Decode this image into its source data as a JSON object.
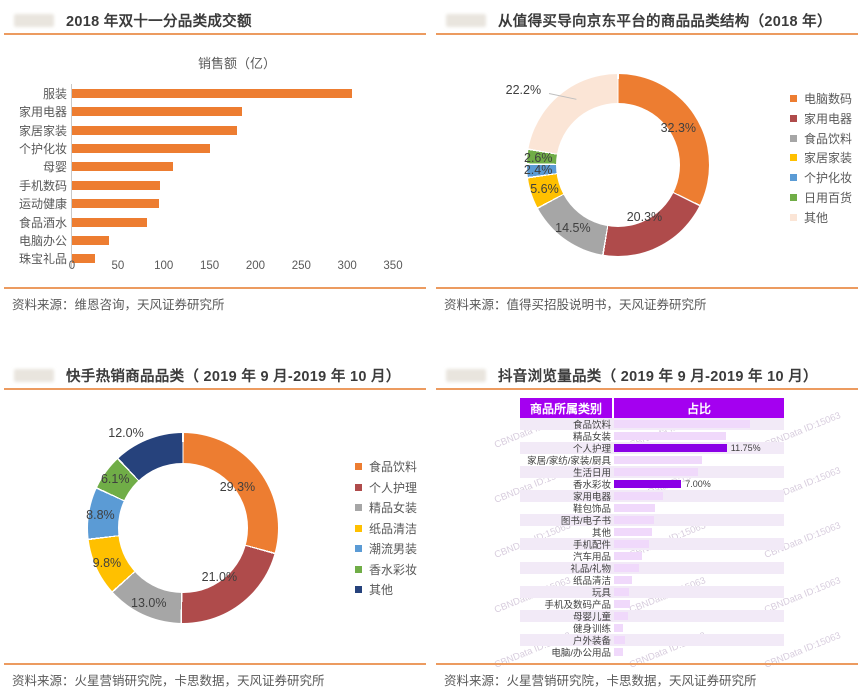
{
  "chart_data": [
    {
      "id": "double11-gmv-by-category",
      "type": "bar",
      "orientation": "horizontal",
      "title": "2018 年双十一分品类成交额",
      "subtitle": "销售额（亿）",
      "categories": [
        "服装",
        "家用电器",
        "家居家装",
        "个护化妆",
        "母婴",
        "手机数码",
        "运动健康",
        "食品酒水",
        "电脑办公",
        "珠宝礼品"
      ],
      "values": [
        305,
        185,
        180,
        150,
        110,
        96,
        95,
        82,
        40,
        25
      ],
      "xlim": [
        0,
        350
      ],
      "xticks": [
        0,
        50,
        100,
        150,
        200,
        250,
        300,
        350
      ],
      "bar_color": "#ED7D31",
      "grid": false,
      "source": "资料来源：维恩咨询，天风证券研究所"
    },
    {
      "id": "zhidemai-to-jd-category-structure",
      "type": "pie",
      "donut": true,
      "title": "从值得买导向京东平台的商品品类结构（2018 年）",
      "legend_position": "right",
      "slices": [
        {
          "label": "电脑数码",
          "value": 32.3,
          "color": "#ED7D31",
          "label_r": 0.78
        },
        {
          "label": "家用电器",
          "value": 20.3,
          "color": "#AF4B4B",
          "label_r": 0.64
        },
        {
          "label": "食品饮料",
          "value": 14.5,
          "color": "#A6A6A6",
          "label_r": 0.85
        },
        {
          "label": "家居家装",
          "value": 5.6,
          "color": "#FFC000",
          "label_r": 0.85
        },
        {
          "label": "个护化妆",
          "value": 2.4,
          "color": "#5B9BD5",
          "label_r": 0.88
        },
        {
          "label": "日用百货",
          "value": 2.6,
          "color": "#70AD47",
          "label_r": 0.88
        },
        {
          "label": "其他",
          "value": 22.2,
          "color": "#FBE5D6",
          "label_pos": [
            -2,
            9
          ],
          "leader": true
        }
      ],
      "source": "资料来源：值得买招股说明书，天风证券研究所"
    },
    {
      "id": "kuaishou-hot-categories",
      "type": "pie",
      "donut": true,
      "title": "快手热销商品品类（ 2019 年 9 月-2019 年 10 月）",
      "legend_position": "right",
      "slices": [
        {
          "label": "食品饮料",
          "value": 29.3,
          "color": "#ED7D31",
          "label_r": 0.72
        },
        {
          "label": "个人护理",
          "value": 21.0,
          "color": "#AF4B4B",
          "label_r": 0.64
        },
        {
          "label": "精品女装",
          "value": 13.0,
          "color": "#A6A6A6",
          "label_r": 0.87
        },
        {
          "label": "纸品清洁",
          "value": 9.8,
          "color": "#FFC000",
          "label_r": 0.88
        },
        {
          "label": "潮流男装",
          "value": 8.8,
          "color": "#5B9BD5",
          "label_r": 0.88
        },
        {
          "label": "香水彩妆",
          "value": 6.1,
          "color": "#70AD47",
          "label_r": 0.88
        },
        {
          "label": "其他",
          "value": 12.0,
          "color": "#26427C",
          "label_pos": [
            20,
            0
          ]
        }
      ],
      "source": "资料来源：火星营销研究院，卡思数据，天风证券研究所"
    },
    {
      "id": "douyin-views-by-category",
      "type": "table",
      "title": "抖音浏览量品类（ 2019 年 9 月-2019 年 10 月）",
      "columns": [
        "商品所属类别",
        "占比"
      ],
      "header_color": "#A400F0",
      "bar_color_normal": "#F0D9FB",
      "bar_color_highlight": "#8A00E6",
      "watermark": "CBNData ID:15063",
      "rows": [
        {
          "label": "食品饮料",
          "value": 14.2
        },
        {
          "label": "精品女装",
          "value": 11.7
        },
        {
          "label": "个人护理",
          "value": 11.75,
          "highlight": true,
          "value_label": "11.75%"
        },
        {
          "label": "家居/家纺/家装/厨具",
          "value": 9.2
        },
        {
          "label": "生活日用",
          "value": 8.8
        },
        {
          "label": "香水彩妆",
          "value": 7.0,
          "highlight": true,
          "value_label": "7.00%"
        },
        {
          "label": "家用电器",
          "value": 5.1
        },
        {
          "label": "鞋包饰品",
          "value": 4.3
        },
        {
          "label": "图书/电子书",
          "value": 4.2
        },
        {
          "label": "其他",
          "value": 4.0
        },
        {
          "label": "手机配件",
          "value": 3.6
        },
        {
          "label": "汽车用品",
          "value": 2.9
        },
        {
          "label": "礼品/礼物",
          "value": 2.6
        },
        {
          "label": "纸品清洁",
          "value": 1.9
        },
        {
          "label": "玩具",
          "value": 1.6
        },
        {
          "label": "手机及数码产品",
          "value": 1.7
        },
        {
          "label": "母婴儿童",
          "value": 1.5
        },
        {
          "label": "健身训练",
          "value": 0.9
        },
        {
          "label": "户外装备",
          "value": 1.1
        },
        {
          "label": "电脑/办公用品",
          "value": 0.9
        }
      ],
      "source": "资料来源：火星营销研究院，卡思数据，天风证券研究所"
    }
  ]
}
